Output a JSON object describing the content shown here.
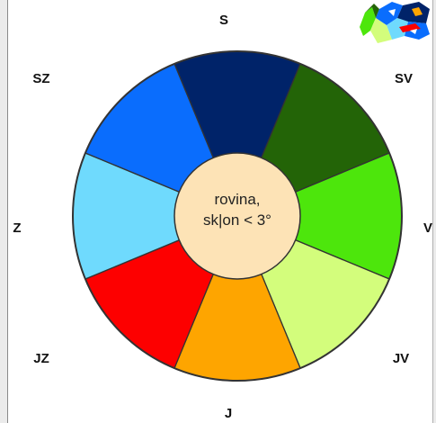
{
  "center": {
    "line1": "rovina,",
    "line2": "sk|on < 3°"
  },
  "directions": {
    "s": "S",
    "sv": "SV",
    "v": "V",
    "jv": "JV",
    "j": "J",
    "jz": "JZ",
    "z": "Z",
    "sz": "SZ"
  },
  "colors": {
    "s": "#002369",
    "sv": "#236407",
    "v": "#4de60c",
    "jv": "#d3fd7c",
    "j": "#fea500",
    "jz": "#fd0000",
    "z": "#6fdafd",
    "sz": "#0a6dfd",
    "center": "#fde3b6",
    "outline": "#333333"
  },
  "thumbnail_icon": "aspect-map-thumbnail"
}
